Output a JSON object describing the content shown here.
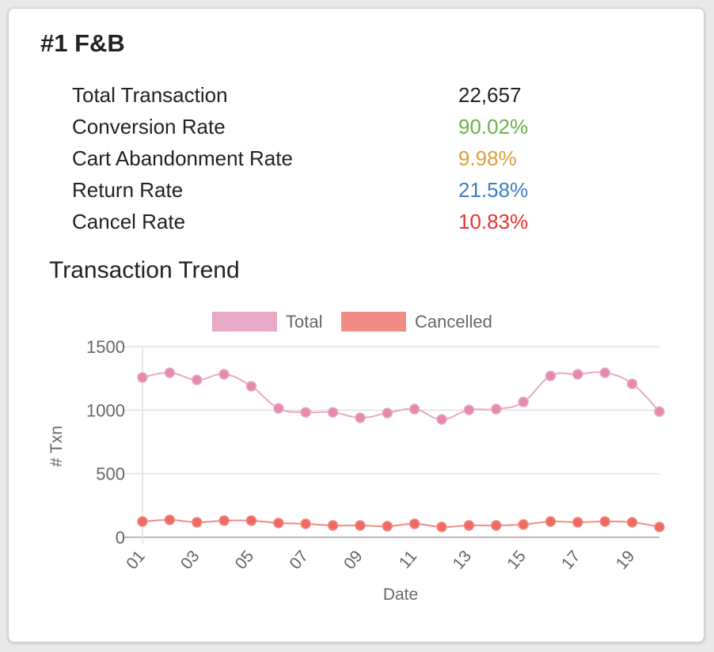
{
  "card": {
    "title": "#1 F&B"
  },
  "stats": [
    {
      "label": "Total Transaction",
      "value": "22,657",
      "color": "#222222"
    },
    {
      "label": "Conversion Rate",
      "value": "90.02%",
      "color": "#6ab04c"
    },
    {
      "label": "Cart Abandonment Rate",
      "value": "9.98%",
      "color": "#d9a13b"
    },
    {
      "label": "Return Rate",
      "value": "21.58%",
      "color": "#3d7ebf"
    },
    {
      "label": "Cancel Rate",
      "value": "10.83%",
      "color": "#e8322b"
    }
  ],
  "chart_data": {
    "type": "line",
    "title": "Transaction Trend",
    "xlabel": "Date",
    "ylabel": "# Txn",
    "ylim": [
      0,
      1500
    ],
    "yticks": [
      "0",
      "500",
      "1000",
      "1500"
    ],
    "grid": true,
    "legend": "top",
    "x": [
      "01",
      "02",
      "03",
      "04",
      "05",
      "06",
      "07",
      "08",
      "09",
      "10",
      "11",
      "12",
      "13",
      "14",
      "15",
      "16",
      "17",
      "18",
      "19",
      "20"
    ],
    "xtick_labels": [
      "01",
      "03",
      "05",
      "07",
      "09",
      "11",
      "13",
      "15",
      "17",
      "19"
    ],
    "series": [
      {
        "name": "Total",
        "color": "#e8a9c6",
        "point_color": "#e48aae",
        "values": [
          1257,
          1294,
          1238,
          1282,
          1188,
          1014,
          983,
          983,
          940,
          977,
          1008,
          927,
          1002,
          1008,
          1064,
          1269,
          1282,
          1294,
          1207,
          989
        ]
      },
      {
        "name": "Cancelled",
        "color": "#f08d85",
        "point_color": "#ee6a62",
        "values": [
          124,
          137,
          118,
          131,
          131,
          112,
          106,
          93,
          93,
          87,
          106,
          81,
          93,
          93,
          100,
          124,
          118,
          124,
          118,
          81
        ]
      }
    ]
  }
}
